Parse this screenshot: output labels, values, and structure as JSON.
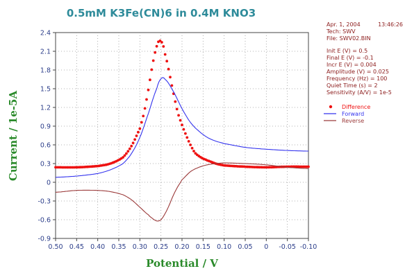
{
  "chart_data": {
    "type": "line",
    "title": "0.5mM K3Fe(CN)6 in 0.4M KNO3",
    "xlabel": "Potential / V",
    "ylabel": "Current / 1e-5A",
    "xlim": [
      0.5,
      -0.1
    ],
    "ylim": [
      -0.9,
      2.4
    ],
    "x_ticks": [
      "0.50",
      "0.45",
      "0.40",
      "0.35",
      "0.30",
      "0.25",
      "0.20",
      "0.15",
      "0.10",
      "0.05",
      "0",
      "-0.05",
      "-0.10"
    ],
    "y_ticks": [
      "2.4",
      "2.1",
      "1.8",
      "1.5",
      "1.2",
      "0.9",
      "0.6",
      "0.3",
      "0",
      "-0.3",
      "-0.6",
      "-0.9"
    ],
    "grid": "dotted",
    "legend_position": "right",
    "series": [
      {
        "name": "Difference",
        "style": "dots",
        "color": "#ee1111",
        "x": [
          0.5,
          0.45,
          0.4,
          0.37,
          0.34,
          0.32,
          0.3,
          0.29,
          0.28,
          0.27,
          0.26,
          0.255,
          0.25,
          0.245,
          0.24,
          0.23,
          0.22,
          0.21,
          0.2,
          0.19,
          0.18,
          0.17,
          0.16,
          0.15,
          0.14,
          0.12,
          0.1,
          0.05,
          0.0,
          -0.05,
          -0.1
        ],
        "y": [
          0.24,
          0.24,
          0.26,
          0.3,
          0.4,
          0.58,
          0.86,
          1.12,
          1.48,
          1.88,
          2.18,
          2.26,
          2.26,
          2.2,
          2.05,
          1.75,
          1.42,
          1.12,
          0.92,
          0.75,
          0.6,
          0.48,
          0.42,
          0.38,
          0.35,
          0.3,
          0.27,
          0.25,
          0.24,
          0.25,
          0.25
        ]
      },
      {
        "name": "Forward",
        "style": "line",
        "color": "#3333ee",
        "x": [
          0.5,
          0.45,
          0.4,
          0.37,
          0.34,
          0.32,
          0.3,
          0.28,
          0.26,
          0.25,
          0.24,
          0.22,
          0.2,
          0.18,
          0.16,
          0.14,
          0.12,
          0.1,
          0.05,
          0.0,
          -0.05,
          -0.1
        ],
        "y": [
          0.08,
          0.1,
          0.14,
          0.2,
          0.3,
          0.46,
          0.72,
          1.1,
          1.5,
          1.66,
          1.65,
          1.45,
          1.18,
          0.96,
          0.82,
          0.72,
          0.66,
          0.62,
          0.56,
          0.53,
          0.51,
          0.5
        ]
      },
      {
        "name": "Reverse",
        "style": "line",
        "color": "#9b3a3a",
        "x": [
          0.5,
          0.45,
          0.4,
          0.37,
          0.34,
          0.32,
          0.3,
          0.28,
          0.27,
          0.26,
          0.25,
          0.24,
          0.23,
          0.22,
          0.21,
          0.2,
          0.18,
          0.16,
          0.14,
          0.12,
          0.1,
          0.05,
          0.0,
          -0.05,
          -0.1
        ],
        "y": [
          -0.16,
          -0.13,
          -0.13,
          -0.15,
          -0.2,
          -0.28,
          -0.4,
          -0.52,
          -0.58,
          -0.62,
          -0.6,
          -0.5,
          -0.36,
          -0.2,
          -0.07,
          0.04,
          0.17,
          0.24,
          0.28,
          0.3,
          0.31,
          0.3,
          0.28,
          0.24,
          0.22
        ]
      }
    ]
  },
  "info": {
    "date": "Apr. 1, 2004",
    "time": "13:46:26",
    "tech": "Tech: SWV",
    "file": "File: SWV02.BIN",
    "params": [
      "Init E (V) = 0.5",
      "Final E (V) = -0.1",
      "Incr E (V) = 0.004",
      "Amplitude (V) = 0.025",
      "Frequency (Hz) = 100",
      "Quiet Time (s) = 2",
      "Sensitivity (A/V) = 1e-5"
    ]
  }
}
